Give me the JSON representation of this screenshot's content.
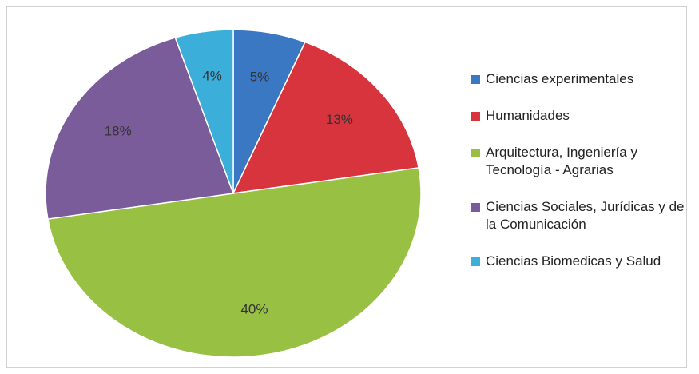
{
  "chart_data": {
    "type": "pie",
    "categories": [
      "Ciencias experimentales",
      "Humanidades",
      "Arquitectura, Ingeniería y Tecnología - Agrarias",
      "Ciencias Sociales, Jurídicas y de la Comunicación",
      "Ciencias Biomedicas y Salud"
    ],
    "values": [
      5,
      13,
      40,
      18,
      4
    ],
    "value_labels": [
      "5%",
      "13%",
      "40%",
      "18%",
      "4%"
    ],
    "colors": [
      "#3b78c3",
      "#d8343e",
      "#98c144",
      "#7b5c9b",
      "#3bafd9"
    ],
    "legend": "right"
  }
}
